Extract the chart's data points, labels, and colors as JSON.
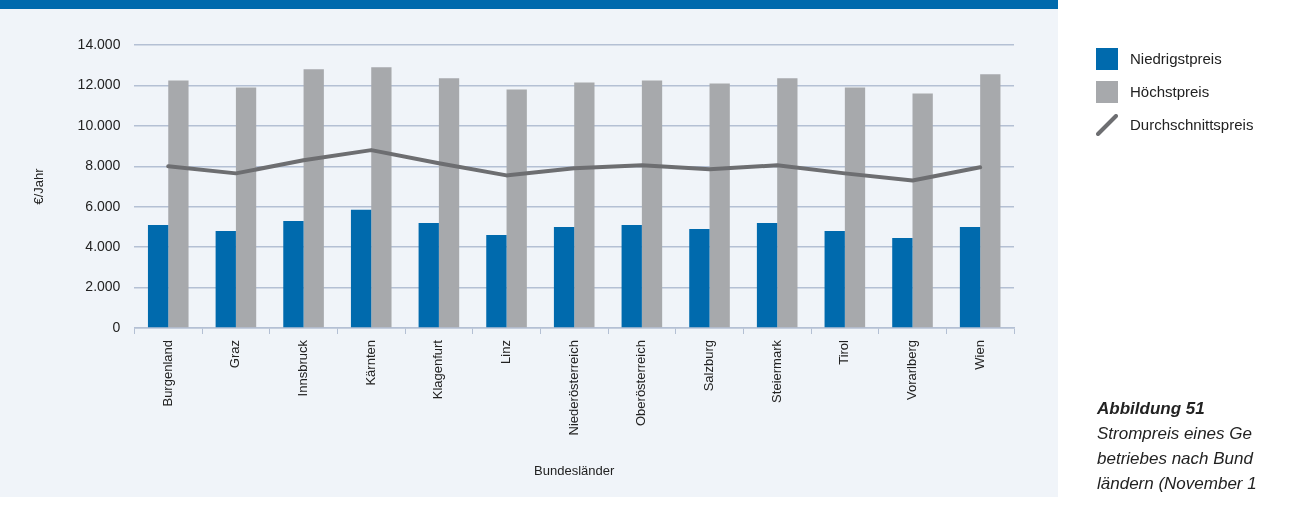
{
  "chart_data": {
    "type": "bar",
    "categories": [
      "Burgenland",
      "Graz",
      "Innsbruck",
      "Kärnten",
      "Klagenfurt",
      "Linz",
      "Niederösterreich",
      "Oberösterreich",
      "Salzburg",
      "Steiermark",
      "Tirol",
      "Vorarlberg",
      "Wien"
    ],
    "series": [
      {
        "name": "Niedrigstpreis",
        "color": "#006aad",
        "values": [
          5100,
          4800,
          5300,
          5850,
          5200,
          4600,
          5000,
          5100,
          4900,
          5200,
          4800,
          4450,
          5000
        ]
      },
      {
        "name": "Höchstpreis",
        "color": "#a7a9ac",
        "values": [
          12250,
          11900,
          12800,
          12900,
          12350,
          11800,
          12150,
          12250,
          12100,
          12350,
          11900,
          11600,
          12550
        ]
      },
      {
        "name": "Durchschnittspreis",
        "type": "line",
        "color": "#6d6e71",
        "marker": "none",
        "values": [
          8000,
          7650,
          8300,
          8800,
          8150,
          7550,
          7900,
          8050,
          7850,
          8050,
          7650,
          7300,
          7950
        ]
      }
    ],
    "ylabel": "€/Jahr",
    "xlabel": "Bundesländer",
    "ylim": [
      0,
      14000
    ],
    "yticks": [
      {
        "value": 0,
        "label": "0"
      },
      {
        "value": 2000,
        "label": "2.000"
      },
      {
        "value": 4000,
        "label": "4.000"
      },
      {
        "value": 6000,
        "label": "6.000"
      },
      {
        "value": 8000,
        "label": "8.000"
      },
      {
        "value": 10000,
        "label": "10.000"
      },
      {
        "value": 12000,
        "label": "12.000"
      },
      {
        "value": 14000,
        "label": "14.000"
      }
    ],
    "grid": "y",
    "legend": "right",
    "annotations": [
      "Abbildung 51",
      "Strompreis eines Ge",
      "betriebes nach Bund",
      "ländern (November 1"
    ]
  }
}
